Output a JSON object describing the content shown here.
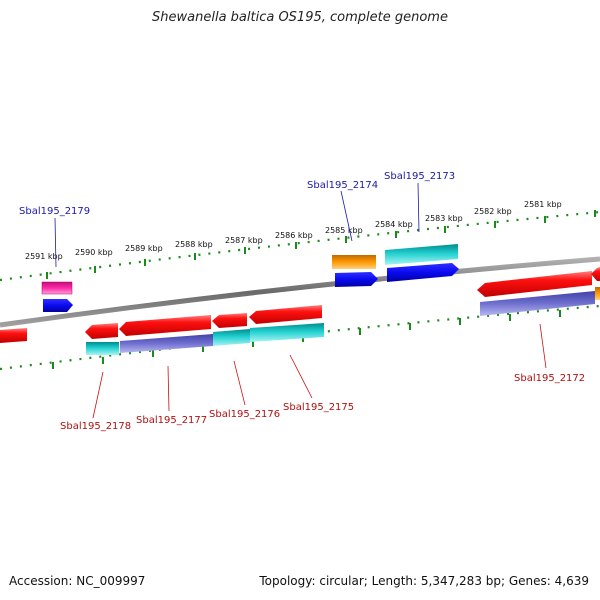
{
  "title": "Shewanella baltica OS195, complete genome",
  "footer": {
    "accession": "Accession: NC_009997",
    "topology": "Topology: circular; Length: 5,347,283 bp; Genes: 4,639"
  },
  "kbp_labels": [
    "2591 kbp",
    "2590 kbp",
    "2589 kbp",
    "2588 kbp",
    "2587 kbp",
    "2586 kbp",
    "2585 kbp",
    "2584 kbp",
    "2583 kbp",
    "2582 kbp",
    "2581 kbp"
  ],
  "gene_labels_top": [
    "Sbal195_2179",
    "Sbal195_2174",
    "Sbal195_2173"
  ],
  "gene_labels_bottom": [
    "Sbal195_2178",
    "Sbal195_2177",
    "Sbal195_2176",
    "Sbal195_2175",
    "Sbal195_2172"
  ],
  "colors": {
    "backbone": "#808080",
    "ticks": "#1a8a1a",
    "red": "#ff1010",
    "cyan": "#22d0d0",
    "orange": "#ff9900",
    "blue": "#0a0af0",
    "magenta": "#ff2aa8",
    "slate": "#7070d0"
  }
}
